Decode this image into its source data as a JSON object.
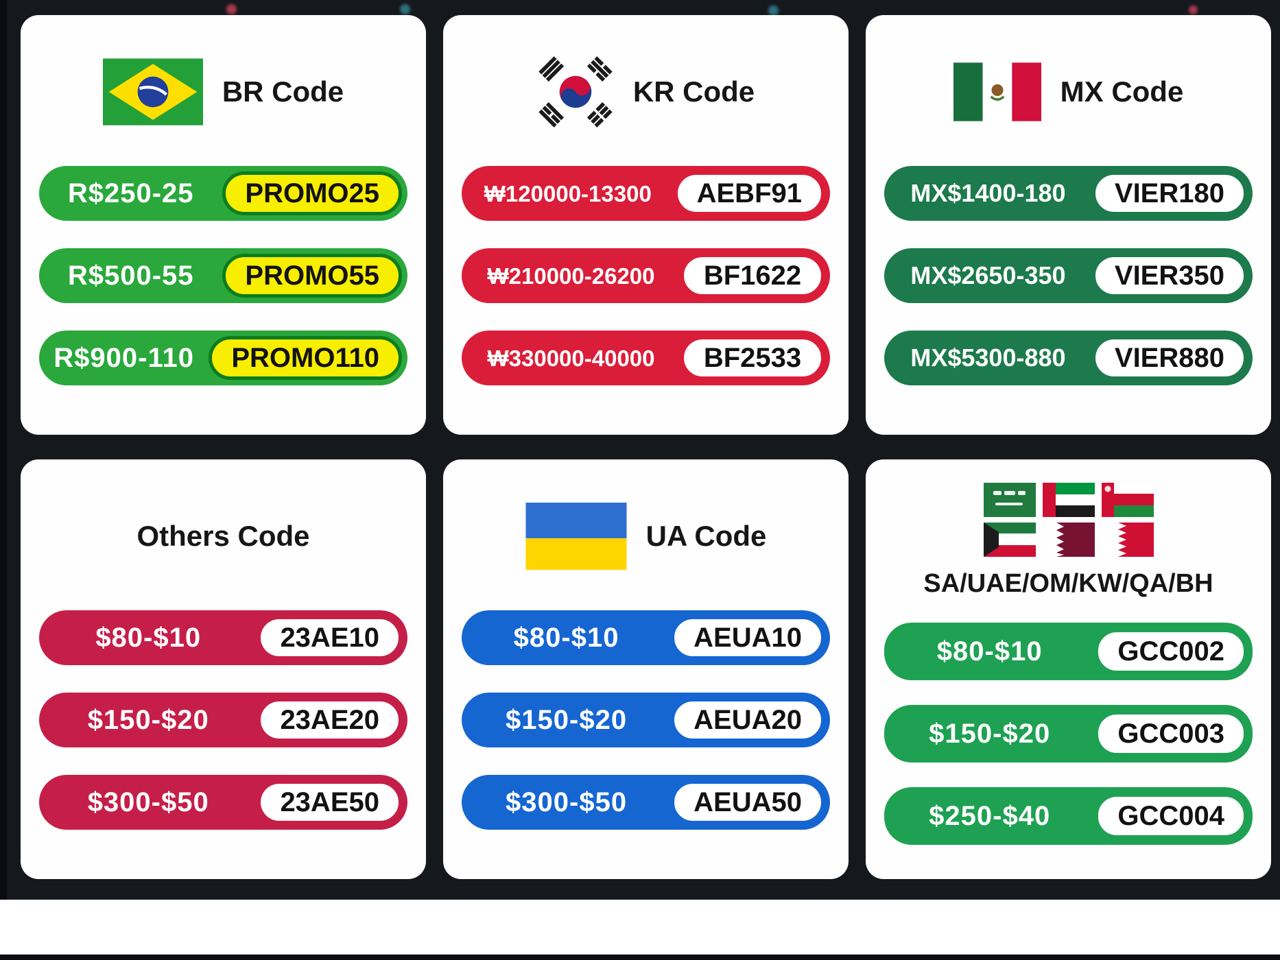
{
  "background": {
    "panel_color": "#15181d",
    "card_color": "#fefefe",
    "bottom_bar_color": "#0b0d10",
    "confetti_colors": [
      "#a63a4c",
      "#2d7080"
    ]
  },
  "cards": [
    {
      "title": "BR Code",
      "flag": "brazil",
      "pill_color": "#2aa83c",
      "badge_bg": "#f8ee00",
      "badge_border": "#0c7d1f",
      "rows": [
        {
          "price": "R$250-25",
          "code": "PROMO25"
        },
        {
          "price": "R$500-55",
          "code": "PROMO55"
        },
        {
          "price": "R$900-110",
          "code": "PROMO110"
        }
      ]
    },
    {
      "title": "KR Code",
      "flag": "south-korea",
      "pill_color": "#da1d39",
      "badge_bg": "#ffffff",
      "badge_border": "#da1d39",
      "rows": [
        {
          "price": "₩120000-13300",
          "code": "AEBF91"
        },
        {
          "price": "₩210000-26200",
          "code": "BF1622"
        },
        {
          "price": "₩330000-40000",
          "code": "BF2533"
        }
      ]
    },
    {
      "title": "MX Code",
      "flag": "mexico",
      "pill_color": "#1c7a4c",
      "badge_bg": "#ffffff",
      "badge_border": "#1c7a4c",
      "rows": [
        {
          "price": "MX$1400-180",
          "code": "VIER180"
        },
        {
          "price": "MX$2650-350",
          "code": "VIER350"
        },
        {
          "price": "MX$5300-880",
          "code": "VIER880"
        }
      ]
    },
    {
      "title": "Others Code",
      "flag": null,
      "pill_color": "#c51f49",
      "badge_bg": "#ffffff",
      "badge_border": "#c51f49",
      "rows": [
        {
          "price": "$80-$10",
          "code": "23AE10"
        },
        {
          "price": "$150-$20",
          "code": "23AE20"
        },
        {
          "price": "$300-$50",
          "code": "23AE50"
        }
      ]
    },
    {
      "title": "UA Code",
      "flag": "ukraine",
      "pill_color": "#1666d2",
      "badge_bg": "#ffffff",
      "badge_border": "#1666d2",
      "rows": [
        {
          "price": "$80-$10",
          "code": "AEUA10"
        },
        {
          "price": "$150-$20",
          "code": "AEUA20"
        },
        {
          "price": "$300-$50",
          "code": "AEUA50"
        }
      ]
    },
    {
      "title": "SA/UAE/OM/KW/QA/BH",
      "flag": "gcc-flags",
      "pill_color": "#1ea152",
      "badge_bg": "#ffffff",
      "badge_border": "#1ea152",
      "rows": [
        {
          "price": "$80-$10",
          "code": "GCC002"
        },
        {
          "price": "$150-$20",
          "code": "GCC003"
        },
        {
          "price": "$250-$40",
          "code": "GCC004"
        }
      ]
    }
  ]
}
